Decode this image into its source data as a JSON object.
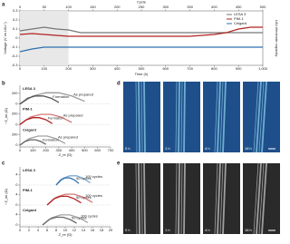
{
  "panel_a": {
    "label": "a",
    "x_label": "Time (h)",
    "y_label": "Voltage (V vs Li/Li⁺)",
    "y2_label": "Li/Li electrode capacity",
    "top_label": "Cycle",
    "xlim": [
      0,
      1000
    ],
    "xticks": [
      0,
      100,
      200,
      300,
      400,
      500,
      600,
      700,
      800,
      900,
      {
        "value": 1000,
        "label": "1,000"
      }
    ],
    "toplim": [
      0,
      500
    ],
    "topticks": [
      0,
      50,
      100,
      150,
      200,
      250,
      300,
      350,
      400,
      450,
      500
    ],
    "ylim": [
      -0.3,
      0.3
    ],
    "yticks": [
      -0.3,
      -0.2,
      -0.1,
      0,
      0.1,
      0.2,
      0.3
    ],
    "series": [
      {
        "name": "LESA 3",
        "color": "#777777",
        "x": [
          0,
          50,
          100,
          150,
          200,
          250,
          300,
          350,
          400,
          450,
          500,
          550,
          600,
          650,
          700,
          750,
          800,
          850,
          900,
          950,
          1000
        ],
        "values": [
          0.08,
          0.1,
          0.12,
          0.1,
          0.09,
          0.06,
          0.06,
          0.06,
          0.06,
          0.06,
          0.06,
          0.06,
          0.06,
          0.06,
          0.06,
          0.06,
          0.06,
          0.06,
          0.06,
          0.06,
          0.06
        ]
      },
      {
        "name": "PIM-1",
        "color": "#b22222",
        "x": [
          0,
          50,
          100,
          150,
          200,
          250,
          300,
          350,
          400,
          450,
          500,
          550,
          600,
          650,
          700,
          750,
          800,
          850,
          900,
          950,
          1000
        ],
        "values": [
          0.04,
          0.05,
          0.04,
          0.03,
          0.02,
          0.02,
          0.02,
          0.02,
          0.02,
          0.02,
          0.02,
          0.02,
          0.02,
          0.02,
          0.02,
          0.03,
          0.04,
          0.06,
          0.1,
          0.12,
          0.12
        ]
      },
      {
        "name": "Celgard",
        "color": "#2f6fb0",
        "x": [
          0,
          50,
          100,
          150,
          200,
          250,
          300,
          350,
          400,
          450,
          500,
          550,
          600,
          650,
          700,
          750,
          800,
          850,
          900,
          950,
          1000
        ],
        "values": [
          -0.15,
          -0.12,
          -0.1,
          -0.1,
          -0.1,
          -0.1,
          -0.1,
          -0.1,
          -0.1,
          -0.1,
          -0.1,
          -0.1,
          -0.1,
          -0.1,
          -0.1,
          -0.1,
          -0.1,
          -0.1,
          -0.1,
          -0.1,
          -0.1
        ]
      }
    ]
  },
  "panel_b": {
    "label": "b",
    "x_label": "Z_re (Ω)",
    "y_label": "−Z_im (Ω)",
    "xlim": [
      0,
      700
    ],
    "xticks": [
      0,
      100,
      200,
      300,
      400,
      500,
      600,
      700
    ],
    "groups": [
      {
        "name": "LESA 3",
        "color": "#555555",
        "ylim": [
          0,
          300
        ],
        "yticks": [
          0,
          200
        ],
        "series": [
          {
            "name": "Formation",
            "x": [
              0,
              60,
              120,
              180,
              240,
              300
            ],
            "y": [
              0,
              110,
              150,
              150,
              110,
              30
            ]
          },
          {
            "name": "As prepared",
            "x": [
              0,
              100,
              200,
              300,
              400,
              500
            ],
            "y": [
              0,
              150,
              210,
              210,
              150,
              50
            ]
          }
        ]
      },
      {
        "name": "PIM-1",
        "color": "#b22222",
        "ylim": [
          0,
          300
        ],
        "yticks": [
          0,
          200
        ],
        "series": [
          {
            "name": "Formation",
            "x": [
              0,
              50,
              100,
              150,
              200,
              250
            ],
            "y": [
              0,
              90,
              130,
              130,
              90,
              20
            ]
          },
          {
            "name": "As prepared",
            "x": [
              0,
              80,
              160,
              240,
              320,
              400
            ],
            "y": [
              0,
              140,
              190,
              190,
              140,
              40
            ]
          }
        ]
      },
      {
        "name": "Celgard",
        "color": "#666666",
        "ylim": [
          0,
          300
        ],
        "yticks": [
          0,
          200
        ],
        "series": [
          {
            "name": "Formation",
            "x": [
              0,
              40,
              80,
              120,
              160,
              200
            ],
            "y": [
              0,
              70,
              100,
              100,
              70,
              15
            ]
          },
          {
            "name": "As prepared",
            "x": [
              0,
              70,
              140,
              210,
              280,
              350
            ],
            "y": [
              0,
              120,
              170,
              170,
              120,
              30
            ]
          }
        ]
      }
    ]
  },
  "panel_c": {
    "label": "c",
    "x_label": "Z_re (Ω)",
    "y_label": "−Z_im (Ω)",
    "xlim": [
      0,
      20
    ],
    "xticks": [
      0,
      2,
      4,
      6,
      8,
      10,
      12,
      14,
      16,
      18,
      20
    ],
    "groups": [
      {
        "name": "LESA 3",
        "color": "#2f6fb0",
        "ylim": [
          0,
          6
        ],
        "yticks": [
          0,
          4
        ],
        "series": [
          {
            "name": "50 cycles",
            "x": [
              8,
              9,
              10,
              11,
              12,
              13
            ],
            "y": [
              0,
              2,
              2.8,
              2.8,
              2,
              0.6
            ]
          },
          {
            "name": "100 cycles",
            "x": [
              8,
              9.5,
              11,
              12.5,
              14,
              15.5
            ],
            "y": [
              0,
              2.6,
              3.6,
              3.6,
              2.6,
              0.8
            ]
          }
        ]
      },
      {
        "name": "PIM-1",
        "color": "#b22222",
        "ylim": [
          0,
          6
        ],
        "yticks": [
          0,
          4
        ],
        "series": [
          {
            "name": "50 cycles",
            "x": [
              6,
              7.5,
              9,
              10.5,
              12,
              13.5
            ],
            "y": [
              0,
              2.4,
              3.4,
              3.4,
              2.4,
              0.8
            ]
          },
          {
            "name": "100 cycles",
            "x": [
              6,
              8,
              10,
              12,
              14,
              16
            ],
            "y": [
              0,
              3,
              4.2,
              4.2,
              3,
              1
            ]
          }
        ]
      },
      {
        "name": "Celgard",
        "color": "#666666",
        "ylim": [
          0,
          6
        ],
        "yticks": [
          0,
          4
        ],
        "series": [
          {
            "name": "50 cycles",
            "x": [
              5,
              6.5,
              8,
              9.5,
              11,
              12.5
            ],
            "y": [
              0,
              2.2,
              3,
              3,
              2.2,
              0.7
            ]
          },
          {
            "name": "100 cycles",
            "x": [
              5,
              7,
              9,
              11,
              13,
              15
            ],
            "y": [
              0,
              2.8,
              3.9,
              3.9,
              2.8,
              0.9
            ]
          }
        ]
      }
    ]
  },
  "panel_d": {
    "label": "d",
    "frames": [
      "0 h",
      "1 h",
      "4 h",
      "18 h"
    ]
  },
  "panel_e": {
    "label": "e",
    "frames": [
      "0 h",
      "1 h",
      "4 h",
      "18 h"
    ]
  }
}
